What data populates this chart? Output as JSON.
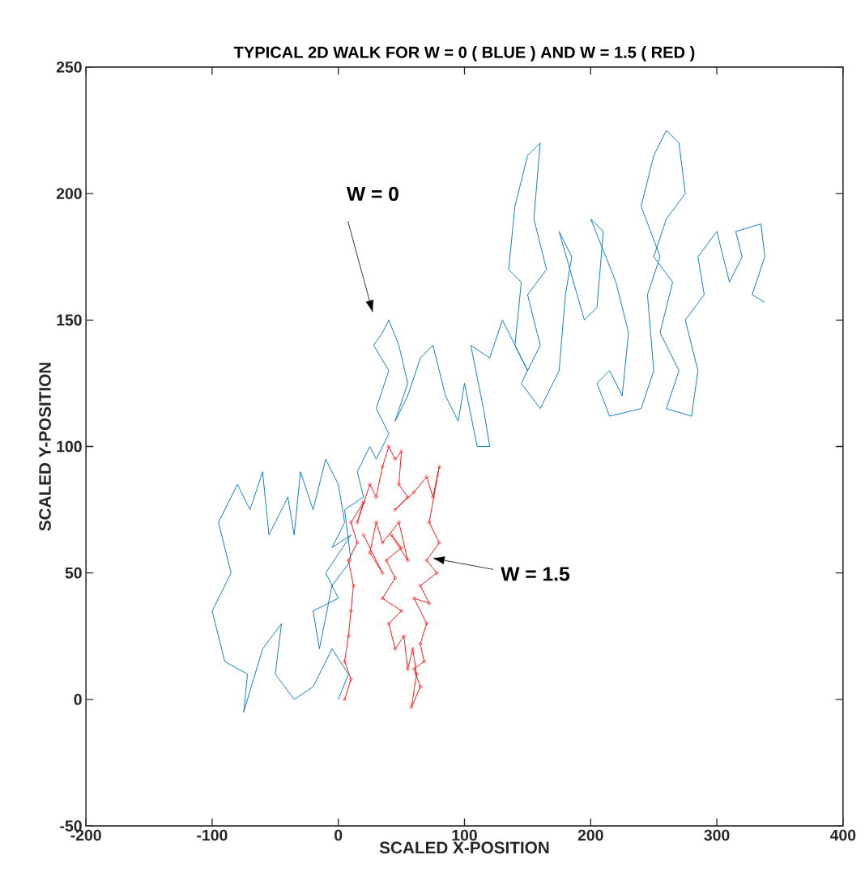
{
  "chart_data": {
    "type": "line",
    "title": "TYPICAL  2D  WALK  FOR  W =  0 ( BLUE )  AND  W = 1.5 ( RED )",
    "xlabel": "SCALED  X-POSITION",
    "ylabel": "SCALED  Y-POSITION",
    "xlim": [
      -200,
      400
    ],
    "ylim": [
      -50,
      250
    ],
    "xticks": [
      -200,
      -100,
      0,
      100,
      200,
      300,
      400
    ],
    "yticks": [
      -50,
      0,
      50,
      100,
      150,
      200,
      250
    ],
    "grid": false,
    "legend": false,
    "line_style": "solid",
    "annotations": [
      "W = 0",
      "W = 1.5"
    ],
    "series": [
      {
        "color": "#0072bd",
        "marker": "none",
        "x": [
          0,
          8,
          -5,
          -20,
          -35,
          -50,
          -45,
          -60,
          -75,
          -72,
          -90,
          -100,
          -85,
          -95,
          -80,
          -70,
          -60,
          -55,
          -40,
          -35,
          -30,
          -20,
          -10,
          0,
          5,
          -5,
          10,
          -10,
          0,
          -20,
          -15,
          -5,
          10,
          5,
          20,
          15,
          25,
          30,
          40,
          30,
          40,
          28,
          35,
          40,
          48,
          55,
          45,
          55,
          65,
          75,
          85,
          95,
          100,
          110,
          120,
          115,
          105,
          120,
          130,
          135,
          150,
          140,
          145,
          135,
          140,
          150,
          160,
          155,
          165,
          150,
          160,
          145,
          160,
          175,
          180,
          185,
          175,
          195,
          205,
          210,
          200,
          220,
          230,
          225,
          215,
          205,
          215,
          240,
          250,
          245,
          255,
          240,
          250,
          260,
          270,
          275,
          260,
          250,
          265,
          255,
          270,
          260,
          280,
          285,
          275,
          290,
          285,
          300,
          310,
          320,
          315,
          335,
          338,
          328,
          338
        ],
        "values": [
          0,
          10,
          20,
          5,
          0,
          10,
          30,
          20,
          -5,
          10,
          15,
          35,
          50,
          70,
          85,
          75,
          90,
          65,
          80,
          65,
          90,
          75,
          95,
          85,
          70,
          60,
          65,
          50,
          40,
          35,
          20,
          45,
          55,
          75,
          80,
          90,
          100,
          95,
          105,
          115,
          130,
          140,
          145,
          150,
          140,
          125,
          110,
          120,
          135,
          140,
          120,
          110,
          125,
          100,
          100,
          115,
          140,
          135,
          150,
          145,
          130,
          140,
          165,
          170,
          195,
          215,
          220,
          190,
          170,
          160,
          140,
          125,
          115,
          130,
          160,
          175,
          185,
          150,
          155,
          185,
          190,
          165,
          145,
          120,
          130,
          125,
          112,
          115,
          130,
          160,
          175,
          195,
          215,
          225,
          220,
          200,
          190,
          175,
          165,
          145,
          130,
          115,
          112,
          130,
          150,
          160,
          175,
          185,
          165,
          175,
          185,
          188,
          175,
          160,
          157
        ]
      },
      {
        "color": "#ff0000",
        "marker": "circle",
        "x": [
          5,
          10,
          5,
          8,
          10,
          12,
          8,
          15,
          10,
          20,
          15,
          25,
          30,
          35,
          40,
          45,
          50,
          48,
          55,
          45,
          60,
          70,
          75,
          80,
          72,
          80,
          70,
          78,
          65,
          72,
          60,
          70,
          65,
          68,
          60,
          65,
          58,
          62,
          59,
          55,
          52,
          45,
          40,
          50,
          35,
          45,
          38,
          50,
          42,
          55,
          48,
          35,
          30,
          25,
          35,
          20
        ],
        "values": [
          0,
          8,
          15,
          25,
          35,
          45,
          55,
          62,
          70,
          78,
          70,
          85,
          80,
          92,
          100,
          95,
          98,
          85,
          80,
          75,
          82,
          88,
          80,
          92,
          70,
          62,
          55,
          50,
          45,
          38,
          40,
          30,
          22,
          15,
          12,
          5,
          -3,
          10,
          20,
          12,
          25,
          20,
          30,
          35,
          40,
          48,
          55,
          60,
          65,
          55,
          70,
          62,
          70,
          58,
          50,
          65
        ]
      }
    ]
  }
}
